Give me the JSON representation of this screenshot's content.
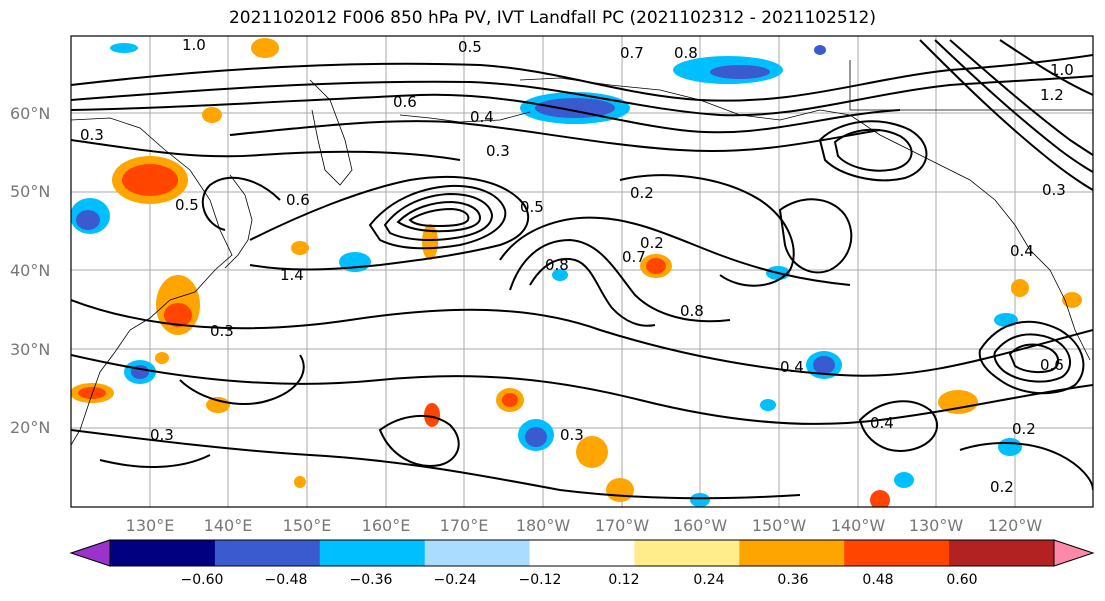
{
  "title": "2021102012 F006 850 hPa PV, IVT Landfall PC (2021102312 - 2021102512)",
  "lat_labels": [
    "60°N",
    "50°N",
    "40°N",
    "30°N",
    "20°N"
  ],
  "lon_labels": [
    "130°E",
    "140°E",
    "150°E",
    "160°E",
    "170°E",
    "180°W",
    "170°W",
    "160°W",
    "150°W",
    "140°W",
    "130°W",
    "120°W"
  ],
  "colorbar": {
    "ticks": [
      "−0.60",
      "−0.48",
      "−0.36",
      "−0.24",
      "−0.12",
      "0.12",
      "0.24",
      "0.36",
      "0.48",
      "0.60"
    ],
    "colors": [
      "#9933cc",
      "#000080",
      "#3a5bd0",
      "#00bfff",
      "#aadcff",
      "#ffffff",
      "#ffec8b",
      "#ffa500",
      "#ff4500",
      "#b22222",
      "#ff88aa"
    ]
  },
  "contour_labels": [
    "0.5",
    "0.7",
    "0.8",
    "1.0",
    "0.3",
    "0.4",
    "0.6",
    "0.2",
    "1.2",
    "1.4",
    "0.5",
    "0.3",
    "0.6",
    "0.7",
    "0.8",
    "0.3",
    "0.4",
    "0.2",
    "0.3",
    "0.4",
    "0.2",
    "0.3",
    "0.5",
    "0.4",
    "0.2",
    "0.3",
    "0.6",
    "1.0",
    "0.8"
  ]
}
